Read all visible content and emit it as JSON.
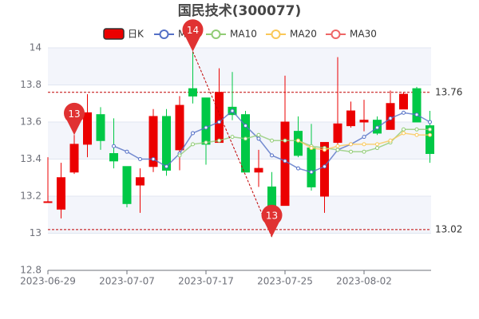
{
  "chart_data": {
    "type": "candlestick",
    "title": "国民技术(300077)",
    "categories": [
      "2023-06-29",
      null,
      null,
      null,
      null,
      null,
      "2023-07-07",
      null,
      null,
      null,
      null,
      null,
      "2023-07-17",
      null,
      null,
      null,
      null,
      null,
      "2023-07-25",
      null,
      null,
      null,
      null,
      null,
      "2023-08-02",
      null,
      null,
      null,
      null,
      null
    ],
    "candles": {
      "name": "日K",
      "up_color": "#eb0000",
      "down_color": "#00c846",
      "open": [
        13.17,
        13.13,
        13.33,
        13.48,
        13.64,
        13.43,
        13.36,
        13.26,
        13.36,
        13.63,
        13.45,
        13.78,
        13.73,
        13.49,
        13.68,
        13.64,
        13.33,
        13.25,
        13.15,
        13.55,
        13.46,
        13.2,
        13.49,
        13.58,
        13.6,
        13.61,
        13.56,
        13.67,
        13.78,
        13.58
      ],
      "high": [
        13.41,
        13.38,
        13.53,
        13.75,
        13.68,
        13.62,
        13.36,
        13.35,
        13.67,
        13.67,
        13.74,
        13.98,
        13.73,
        13.89,
        13.87,
        13.66,
        13.45,
        13.33,
        13.85,
        13.63,
        13.59,
        13.49,
        13.95,
        13.71,
        13.72,
        13.63,
        13.77,
        13.76,
        13.79,
        13.66
      ],
      "low": [
        13.17,
        13.08,
        13.32,
        13.41,
        13.45,
        13.35,
        13.14,
        13.11,
        13.33,
        13.31,
        13.34,
        13.7,
        13.37,
        13.49,
        13.61,
        13.33,
        13.25,
        12.98,
        13.15,
        13.41,
        13.23,
        13.11,
        13.48,
        13.57,
        13.55,
        13.53,
        13.56,
        13.67,
        13.6,
        13.38
      ],
      "close": [
        13.17,
        13.3,
        13.48,
        13.65,
        13.5,
        13.39,
        13.16,
        13.3,
        13.63,
        13.34,
        13.69,
        13.74,
        13.48,
        13.76,
        13.64,
        13.33,
        13.35,
        13.05,
        13.6,
        13.42,
        13.25,
        13.49,
        13.59,
        13.66,
        13.61,
        13.54,
        13.7,
        13.75,
        13.6,
        13.43
      ]
    },
    "series": [
      {
        "name": "MA5",
        "color": "#5470c6",
        "values": [
          null,
          null,
          null,
          null,
          null,
          13.47,
          13.44,
          13.4,
          13.4,
          13.36,
          13.43,
          13.54,
          13.57,
          13.6,
          13.66,
          13.58,
          13.51,
          13.42,
          13.39,
          13.35,
          13.33,
          13.36,
          13.45,
          13.48,
          13.52,
          13.57,
          13.62,
          13.65,
          13.64,
          13.6
        ]
      },
      {
        "name": "MA10",
        "color": "#91cc75",
        "values": [
          null,
          null,
          null,
          null,
          null,
          null,
          null,
          null,
          null,
          null,
          13.42,
          13.48,
          13.49,
          13.5,
          13.52,
          13.51,
          13.53,
          13.5,
          13.5,
          13.5,
          13.47,
          13.46,
          13.45,
          13.44,
          13.44,
          13.46,
          13.49,
          13.56,
          13.56,
          13.56
        ]
      },
      {
        "name": "MA20",
        "color": "#fac858",
        "values": [
          null,
          null,
          null,
          null,
          null,
          null,
          null,
          null,
          null,
          null,
          null,
          null,
          null,
          null,
          null,
          null,
          null,
          null,
          null,
          13.5,
          13.46,
          13.45,
          13.47,
          13.48,
          13.48,
          13.48,
          13.5,
          13.54,
          13.53,
          13.53
        ]
      },
      {
        "name": "MA30",
        "color": "#ee6666",
        "values": [
          null,
          null,
          null,
          null,
          null,
          null,
          null,
          null,
          null,
          null,
          null,
          null,
          null,
          null,
          null,
          null,
          null,
          null,
          null,
          null,
          null,
          null,
          null,
          null,
          null,
          null,
          null,
          null,
          null,
          null
        ]
      }
    ],
    "markers": [
      {
        "index": 2,
        "value": 13.53,
        "label": "13"
      },
      {
        "index": 11,
        "value": 13.98,
        "label": "14"
      },
      {
        "index": 17,
        "value": 12.98,
        "label": "13"
      }
    ],
    "hlines": [
      13.76,
      13.02
    ],
    "hline_color": "#c00000",
    "ylim": [
      12.8,
      14
    ],
    "yticks": [
      12.8,
      13,
      13.2,
      13.4,
      13.6,
      13.8,
      14
    ],
    "grid": true
  }
}
